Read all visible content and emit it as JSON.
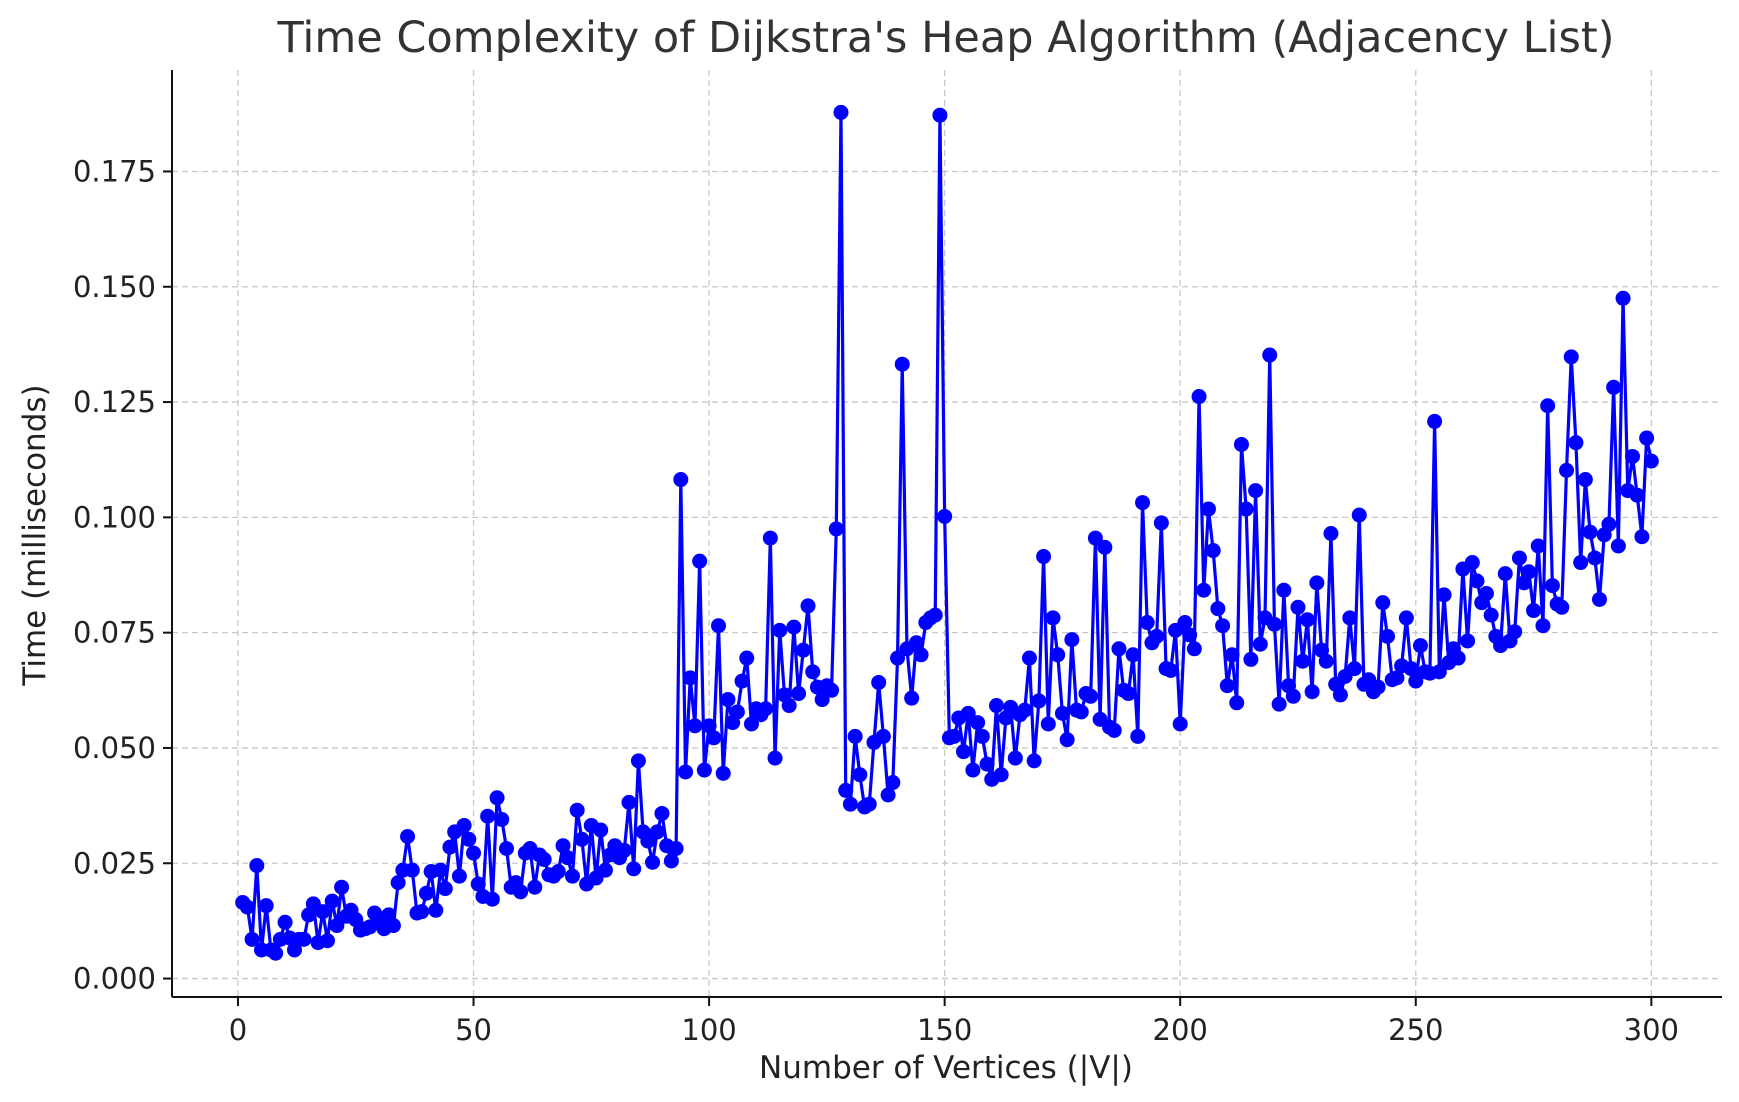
{
  "chart_data": {
    "type": "line",
    "title": "Time Complexity of Dijkstra's Heap Algorithm (Adjacency List)",
    "xlabel": "Number of Vertices (|V|)",
    "ylabel": "Time (milliseconds)",
    "xlim": [
      -14,
      315
    ],
    "ylim": [
      -0.004,
      0.197
    ],
    "xticks": [
      0,
      50,
      100,
      150,
      200,
      250,
      300
    ],
    "xtick_labels": [
      "0",
      "50",
      "100",
      "150",
      "200",
      "250",
      "300"
    ],
    "yticks": [
      0.0,
      0.025,
      0.05,
      0.075,
      0.1,
      0.125,
      0.15,
      0.175
    ],
    "ytick_labels": [
      "0.000",
      "0.025",
      "0.050",
      "0.075",
      "0.100",
      "0.125",
      "0.150",
      "0.175"
    ],
    "grid": true,
    "line_color": "#0000ff",
    "marker": "circle",
    "series": [
      {
        "x": [
          1,
          2,
          3,
          4,
          5,
          6,
          7,
          8,
          9,
          10,
          11,
          12,
          13,
          14,
          15,
          16,
          17,
          18,
          19,
          20,
          21,
          22,
          23,
          24,
          25,
          26,
          27,
          28,
          29,
          30,
          31,
          32,
          33,
          34,
          35,
          36,
          37,
          38,
          39,
          40,
          41,
          42,
          43,
          44,
          45,
          46,
          47,
          48,
          49,
          50,
          51,
          52,
          53,
          54,
          55,
          56,
          57,
          58,
          59,
          60,
          61,
          62,
          63,
          64,
          65,
          66,
          67,
          68,
          69,
          70,
          71,
          72,
          73,
          74,
          75,
          76,
          77,
          78,
          79,
          80,
          81,
          82,
          83,
          84,
          85,
          86,
          87,
          88,
          89,
          90,
          91,
          92,
          93,
          94,
          95,
          96,
          97,
          98,
          99,
          100,
          101,
          102,
          103,
          104,
          105,
          106,
          107,
          108,
          109,
          110,
          111,
          112,
          113,
          114,
          115,
          116,
          117,
          118,
          119,
          120,
          121,
          122,
          123,
          124,
          125,
          126,
          127,
          128,
          129,
          130,
          131,
          132,
          133,
          134,
          135,
          136,
          137,
          138,
          139,
          140,
          141,
          142,
          143,
          144,
          145,
          146,
          147,
          148,
          149,
          150,
          151,
          152,
          153,
          154,
          155,
          156,
          157,
          158,
          159,
          160,
          161,
          162,
          163,
          164,
          165,
          166,
          167,
          168,
          169,
          170,
          171,
          172,
          173,
          174,
          175,
          176,
          177,
          178,
          179,
          180,
          181,
          182,
          183,
          184,
          185,
          186,
          187,
          188,
          189,
          190,
          191,
          192,
          193,
          194,
          195,
          196,
          197,
          198,
          199,
          200,
          201,
          202,
          203,
          204,
          205,
          206,
          207,
          208,
          209,
          210,
          211,
          212,
          213,
          214,
          215,
          216,
          217,
          218,
          219,
          220,
          221,
          222,
          223,
          224,
          225,
          226,
          227,
          228,
          229,
          230,
          231,
          232,
          233,
          234,
          235,
          236,
          237,
          238,
          239,
          240,
          241,
          242,
          243,
          244,
          245,
          246,
          247,
          248,
          249,
          250,
          251,
          252,
          253,
          254,
          255,
          256,
          257,
          258,
          259,
          260,
          261,
          262,
          263,
          264,
          265,
          266,
          267,
          268,
          269,
          270,
          271,
          272,
          273,
          274,
          275,
          276,
          277,
          278,
          279,
          280,
          281,
          282,
          283,
          284,
          285,
          286,
          287,
          288,
          289,
          290,
          291,
          292,
          293,
          294,
          295,
          296,
          297,
          298,
          299,
          300
        ],
        "y": [
          0.0165,
          0.0155,
          0.0085,
          0.0245,
          0.0062,
          0.0158,
          0.0062,
          0.0055,
          0.0085,
          0.0122,
          0.0088,
          0.0062,
          0.0085,
          0.0085,
          0.0138,
          0.0162,
          0.0078,
          0.0145,
          0.0082,
          0.0168,
          0.0115,
          0.0198,
          0.0135,
          0.0148,
          0.0128,
          0.0105,
          0.0108,
          0.0112,
          0.0142,
          0.0125,
          0.0108,
          0.0138,
          0.0115,
          0.0208,
          0.0235,
          0.0308,
          0.0235,
          0.0142,
          0.0145,
          0.0185,
          0.0232,
          0.0148,
          0.0235,
          0.0195,
          0.0285,
          0.0318,
          0.0222,
          0.0332,
          0.0302,
          0.0272,
          0.0205,
          0.0178,
          0.0352,
          0.0172,
          0.0392,
          0.0345,
          0.0282,
          0.0198,
          0.0208,
          0.0188,
          0.0272,
          0.0282,
          0.0198,
          0.0268,
          0.0258,
          0.0225,
          0.0222,
          0.0232,
          0.0288,
          0.0262,
          0.0222,
          0.0365,
          0.0302,
          0.0205,
          0.0332,
          0.0218,
          0.0322,
          0.0235,
          0.0268,
          0.0288,
          0.0262,
          0.0278,
          0.0382,
          0.0238,
          0.0472,
          0.0318,
          0.0298,
          0.0252,
          0.0318,
          0.0358,
          0.0288,
          0.0255,
          0.0282,
          0.1082,
          0.0448,
          0.0652,
          0.0548,
          0.0905,
          0.0452,
          0.0548,
          0.0522,
          0.0765,
          0.0445,
          0.0605,
          0.0555,
          0.0578,
          0.0645,
          0.0695,
          0.0552,
          0.0585,
          0.0572,
          0.0585,
          0.0955,
          0.0478,
          0.0755,
          0.0615,
          0.0592,
          0.0762,
          0.0618,
          0.0712,
          0.0808,
          0.0665,
          0.0632,
          0.0605,
          0.0635,
          0.0625,
          0.0975,
          0.1878,
          0.0408,
          0.0378,
          0.0525,
          0.0442,
          0.0372,
          0.0378,
          0.0512,
          0.0642,
          0.0525,
          0.0398,
          0.0425,
          0.0695,
          0.1332,
          0.0715,
          0.0608,
          0.0728,
          0.0702,
          0.0772,
          0.0782,
          0.0788,
          0.1872,
          0.1002,
          0.0522,
          0.0525,
          0.0565,
          0.0492,
          0.0575,
          0.0452,
          0.0555,
          0.0525,
          0.0465,
          0.0432,
          0.0592,
          0.0442,
          0.0565,
          0.0588,
          0.0478,
          0.0572,
          0.0582,
          0.0695,
          0.0472,
          0.0602,
          0.0915,
          0.0552,
          0.0782,
          0.0702,
          0.0575,
          0.0518,
          0.0735,
          0.0582,
          0.0578,
          0.0618,
          0.0612,
          0.0955,
          0.0562,
          0.0935,
          0.0545,
          0.0538,
          0.0715,
          0.0625,
          0.0618,
          0.0702,
          0.0525,
          0.1032,
          0.0772,
          0.0728,
          0.0742,
          0.0988,
          0.0672,
          0.0668,
          0.0755,
          0.0552,
          0.0772,
          0.0745,
          0.0715,
          0.1262,
          0.0842,
          0.1018,
          0.0928,
          0.0802,
          0.0765,
          0.0635,
          0.0702,
          0.0598,
          0.1158,
          0.1018,
          0.0692,
          0.1058,
          0.0725,
          0.0782,
          0.1352,
          0.0768,
          0.0595,
          0.0842,
          0.0635,
          0.0612,
          0.0805,
          0.0688,
          0.0778,
          0.0622,
          0.0858,
          0.0712,
          0.0688,
          0.0965,
          0.0638,
          0.0615,
          0.0655,
          0.0782,
          0.0672,
          0.1005,
          0.0638,
          0.0648,
          0.0622,
          0.0632,
          0.0815,
          0.0742,
          0.0648,
          0.0652,
          0.0678,
          0.0782,
          0.0672,
          0.0645,
          0.0722,
          0.0665,
          0.0662,
          0.1208,
          0.0665,
          0.0832,
          0.0685,
          0.0715,
          0.0695,
          0.0888,
          0.0732,
          0.0902,
          0.0862,
          0.0815,
          0.0835,
          0.0788,
          0.0742,
          0.0722,
          0.0878,
          0.0732,
          0.0752,
          0.0912,
          0.0858,
          0.0882,
          0.0798,
          0.0938,
          0.0765,
          0.1242,
          0.0852,
          0.0812,
          0.0805,
          0.1102,
          0.1348,
          0.1162,
          0.0902,
          0.1082,
          0.0968,
          0.0912,
          0.0822,
          0.0962,
          0.0985,
          0.1282,
          0.0938,
          0.1475,
          0.1058,
          0.1132,
          0.1048,
          0.0958,
          0.1172,
          0.1122
        ]
      }
    ]
  }
}
